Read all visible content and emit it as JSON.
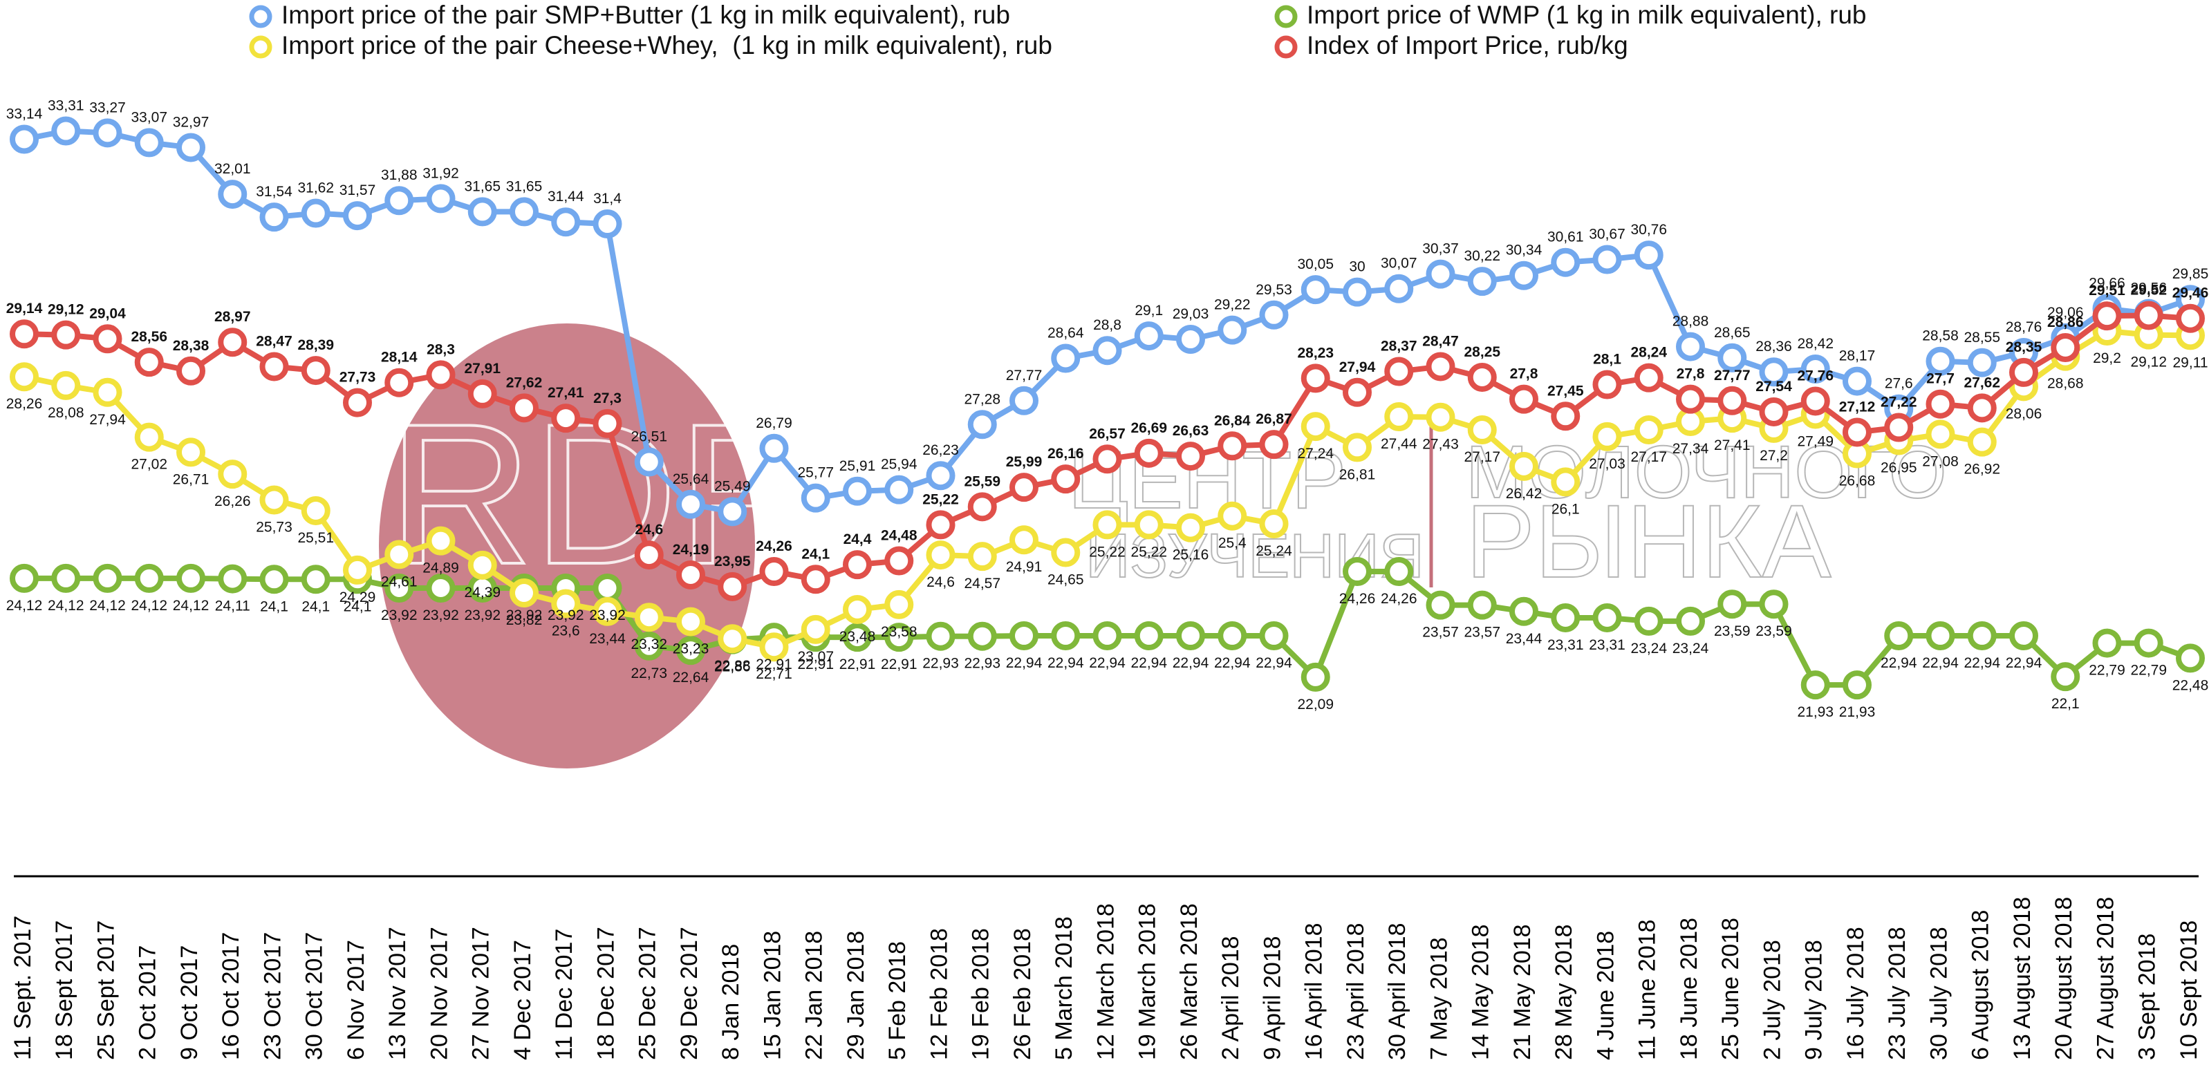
{
  "chart_data": {
    "type": "line",
    "annotations": [
      "RDRC",
      "ЦЕНТР",
      "ИЗУЧЕНИЯ",
      "МОЛОЧНОГО",
      "РЫНКА"
    ],
    "categories": [
      "11 Sept. 2017",
      "18 Sept 2017",
      "25 Sept 2017",
      "2 Oct 2017",
      "9 Oct 2017",
      "16 Oct 2017",
      "23 Oct 2017",
      "30 Oct 2017",
      "6 Nov 2017",
      "13 Nov 2017",
      "20 Nov 2017",
      "27 Nov 2017",
      "4 Dec 2017",
      "11 Dec 2017",
      "18 Dec 2017",
      "25 Dec 2017",
      "29 Dec 2017",
      "8 Jan 2018",
      "15 Jan 2018",
      "22 Jan 2018",
      "29 Jan 2018",
      "5 Feb 2018",
      "12 Feb 2018",
      "19 Feb 2018",
      "26 Feb 2018",
      "5 March 2018",
      "12 March 2018",
      "19 March 2018",
      "26 March 2018",
      "2 April 2018",
      "9 April 2018",
      "16 April 2018",
      "23 April 2018",
      "30 April 2018",
      "7 May 2018",
      "14 May 2018",
      "21 May 2018",
      "28 May 2018",
      "4 June 2018",
      "11 June 2018",
      "18 June 2018",
      "25 June 2018",
      "2 July 2018",
      "9 July 2018",
      "16 July 2018",
      "23 July 2018",
      "30 July 2018",
      "6 August 2018",
      "13 August 2018",
      "20 August 2018",
      "27 August 2018",
      "3 Sept 2018",
      "10 Sept 2018"
    ],
    "ylim": [
      18,
      36
    ],
    "series": [
      {
        "name": "Import price of the pair SMP+Butter (1 kg in milk equivalent), rub",
        "color": "#72a8ee",
        "values": [
          33.14,
          33.31,
          33.27,
          33.07,
          32.97,
          32.01,
          31.54,
          31.62,
          31.57,
          31.88,
          31.92,
          31.65,
          31.65,
          31.44,
          31.4,
          26.51,
          25.64,
          25.49,
          26.79,
          25.77,
          25.91,
          25.94,
          26.23,
          27.28,
          27.77,
          28.64,
          28.8,
          29.1,
          29.03,
          29.22,
          29.53,
          30.05,
          30,
          30.07,
          30.37,
          30.22,
          30.34,
          30.61,
          30.67,
          30.76,
          28.88,
          28.65,
          28.36,
          28.42,
          28.17,
          27.6,
          28.58,
          28.55,
          28.76,
          29.06,
          29.66,
          29.56,
          29.85
        ],
        "value_labels": [
          "33,14",
          "33,31",
          "33,27",
          "33,07",
          "32,97",
          "32,01",
          "31,54",
          "31,62",
          "31,57",
          "31,88",
          "31,92",
          "31,65",
          "31,65",
          "31,44",
          "31,4",
          "26,51",
          "25,64",
          "25,49",
          "26,79",
          "25,77",
          "25,91",
          "25,94",
          "26,23",
          "27,28",
          "27,77",
          "28,64",
          "28,8",
          "29,1",
          "29,03",
          "29,22",
          "29,53",
          "30,05",
          "30",
          "30,07",
          "30,37",
          "30,22",
          "30,34",
          "30,61",
          "30,67",
          "30,76",
          "28,88",
          "28,65",
          "28,36",
          "28,42",
          "28,17",
          "27,6",
          "28,58",
          "28,55",
          "28,76",
          "29,06",
          "29,66",
          "29,56",
          "29,85"
        ]
      },
      {
        "name": "Import price of the pair Cheese+Whey,  (1 kg in milk equivalent), rub",
        "color": "#f2e23c",
        "values": [
          28.26,
          28.08,
          27.94,
          27.02,
          26.71,
          26.26,
          25.73,
          25.51,
          24.29,
          24.61,
          24.89,
          24.39,
          23.82,
          23.6,
          23.44,
          23.32,
          23.23,
          22.88,
          22.71,
          23.07,
          23.48,
          23.58,
          24.6,
          24.57,
          24.91,
          24.65,
          25.22,
          25.22,
          25.16,
          25.4,
          25.24,
          27.24,
          26.81,
          27.44,
          27.43,
          27.17,
          26.42,
          26.1,
          27.03,
          27.17,
          27.34,
          27.41,
          27.2,
          27.49,
          26.68,
          26.95,
          27.08,
          26.92,
          28.06,
          28.68,
          29.2,
          29.12,
          29.11
        ],
        "value_labels": [
          "28,26",
          "28,08",
          "27,94",
          "27,02",
          "26,71",
          "26,26",
          "25,73",
          "25,51",
          "24,29",
          "24,61",
          "24,89",
          "24,39",
          "23,82",
          "23,6",
          "23,44",
          "23,32",
          "23,23",
          "22,88",
          "22,71",
          "23,07",
          "23,48",
          "23,58",
          "24,6",
          "24,57",
          "24,91",
          "24,65",
          "25,22",
          "25,22",
          "25,16",
          "25,4",
          "25,24",
          "27,24",
          "26,81",
          "27,44",
          "27,43",
          "27,17",
          "26,42",
          "26,1",
          "27,03",
          "27,17",
          "27,34",
          "27,41",
          "27,2",
          "27,49",
          "26,68",
          "26,95",
          "27,08",
          "26,92",
          "28,06",
          "28,68",
          "29,2",
          "29,12",
          "29,11"
        ]
      },
      {
        "name": "Import price of WMP (1 kg in milk equivalent), rub",
        "color": "#80b83a",
        "values": [
          24.12,
          24.12,
          24.12,
          24.12,
          24.12,
          24.11,
          24.1,
          24.1,
          24.1,
          23.92,
          23.92,
          23.92,
          23.92,
          23.92,
          23.92,
          22.73,
          22.64,
          22.86,
          22.91,
          22.91,
          22.91,
          22.91,
          22.93,
          22.93,
          22.94,
          22.94,
          22.94,
          22.94,
          22.94,
          22.94,
          22.94,
          22.09,
          24.26,
          24.26,
          23.57,
          23.57,
          23.44,
          23.31,
          23.31,
          23.24,
          23.24,
          23.59,
          23.59,
          21.93,
          21.93,
          22.94,
          22.94,
          22.94,
          22.94,
          22.1,
          22.79,
          22.79,
          22.48
        ],
        "value_labels": [
          "24,12",
          "24,12",
          "24,12",
          "24,12",
          "24,12",
          "24,11",
          "24,1",
          "24,1",
          "24,1",
          "23,92",
          "23,92",
          "23,92",
          "23,92",
          "23,92",
          "23,92",
          "22,73",
          "22,64",
          "22,86",
          "22,91",
          "22,91",
          "22,91",
          "22,91",
          "22,93",
          "22,93",
          "22,94",
          "22,94",
          "22,94",
          "22,94",
          "22,94",
          "22,94",
          "22,94",
          "22,09",
          "24,26",
          "24,26",
          "23,57",
          "23,57",
          "23,44",
          "23,31",
          "23,31",
          "23,24",
          "23,24",
          "23,59",
          "23,59",
          "21,93",
          "21,93",
          "22,94",
          "22,94",
          "22,94",
          "22,94",
          "22,1",
          "22,79",
          "22,79",
          "22,48"
        ]
      },
      {
        "name": "Index of Import Price, rub/kg",
        "color": "#e0504a",
        "values": [
          29.14,
          29.12,
          29.04,
          28.56,
          28.38,
          28.97,
          28.47,
          28.39,
          27.73,
          28.14,
          28.3,
          27.91,
          27.62,
          27.41,
          27.3,
          24.6,
          24.19,
          23.95,
          24.26,
          24.1,
          24.4,
          24.48,
          25.22,
          25.59,
          25.99,
          26.16,
          26.57,
          26.69,
          26.63,
          26.84,
          26.87,
          28.23,
          27.94,
          28.37,
          28.47,
          28.25,
          27.8,
          27.45,
          28.1,
          28.24,
          27.8,
          27.77,
          27.54,
          27.76,
          27.12,
          27.22,
          27.7,
          27.62,
          28.35,
          28.86,
          29.51,
          29.52,
          29.46
        ],
        "value_labels": [
          "29,14",
          "29,12",
          "29,04",
          "28,56",
          "28,38",
          "28,97",
          "28,47",
          "28,39",
          "27,73",
          "28,14",
          "28,3",
          "27,91",
          "27,62",
          "27,41",
          "27,3",
          "24,6",
          "24,19",
          "23,95",
          "24,26",
          "24,1",
          "24,4",
          "24,48",
          "25,22",
          "25,59",
          "25,99",
          "26,16",
          "26,57",
          "26,69",
          "26,63",
          "26,84",
          "26,87",
          "28,23",
          "27,94",
          "28,37",
          "28,47",
          "28,25",
          "27,8",
          "27,45",
          "28,1",
          "28,24",
          "27,8",
          "27,77",
          "27,54",
          "27,76",
          "27,12",
          "27,22",
          "27,7",
          "27,62",
          "28,35",
          "28,86",
          "29,51",
          "29,52",
          "29,46"
        ]
      }
    ]
  }
}
